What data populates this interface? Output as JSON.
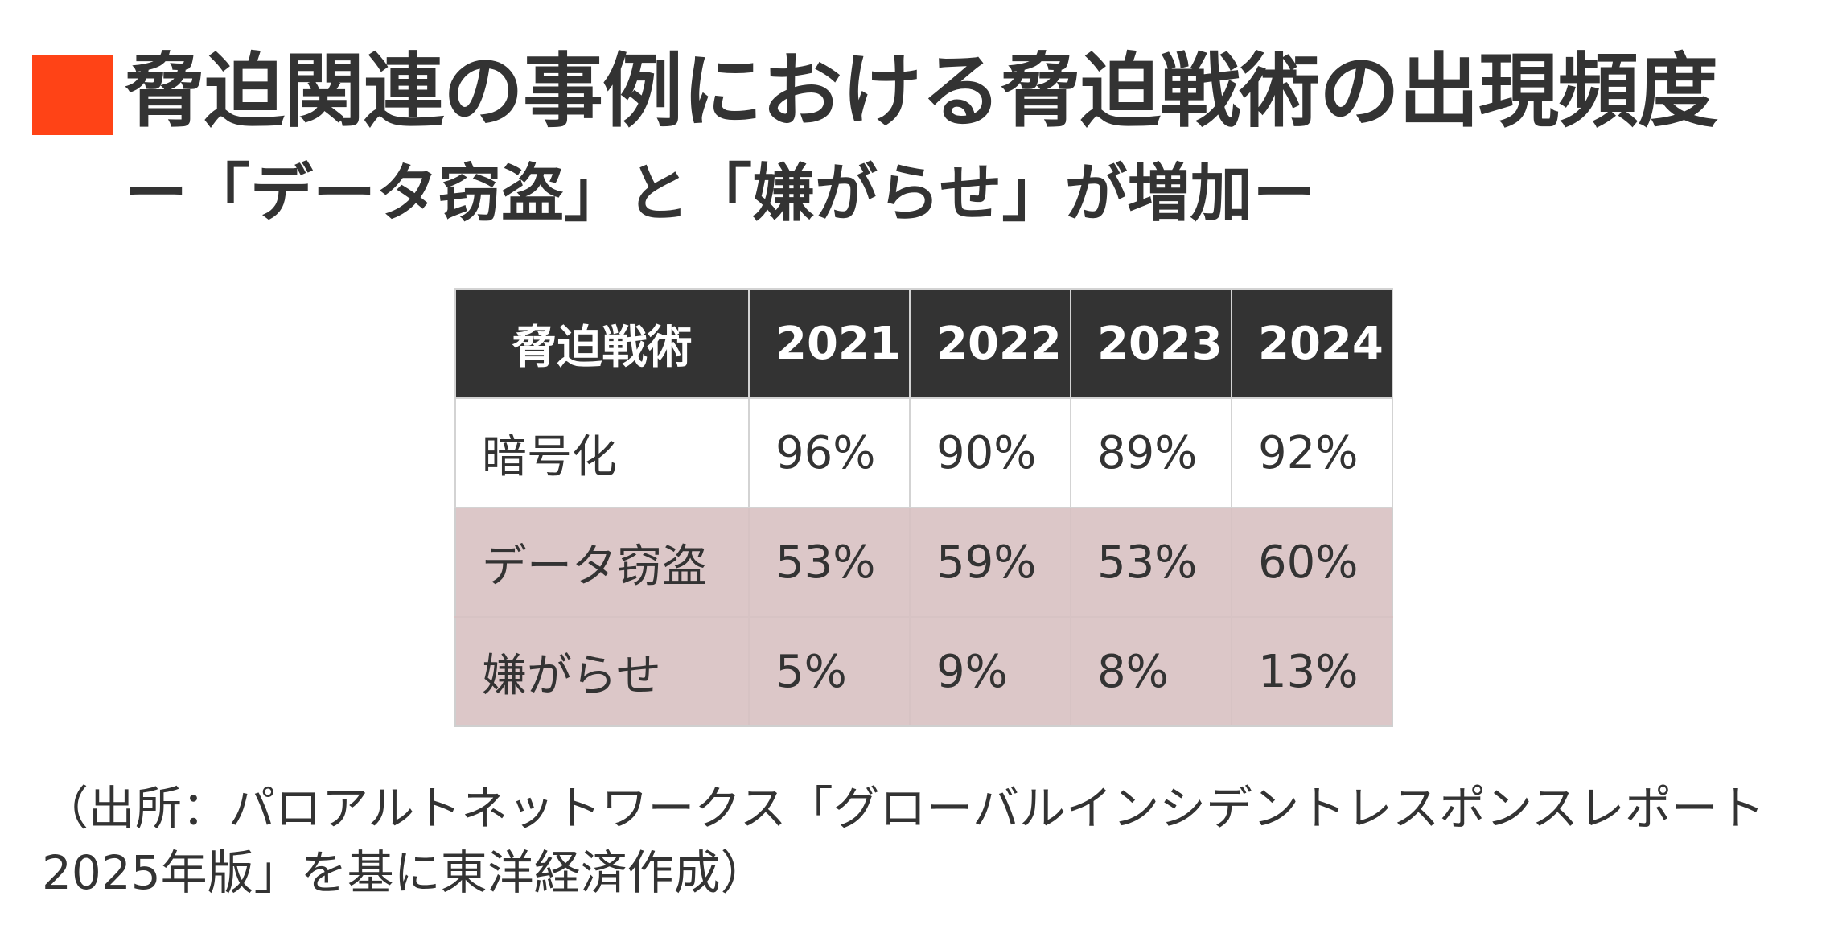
{
  "title": "脅迫関連の事例における脅迫戦術の出現頻度",
  "subtitle": "ー「データ窃盗」と「嫌がらせ」が増加ー",
  "source_note": "（出所：パロアルトネットワークス「グローバルインシデントレスポンスレポート2025年版」を基に東洋経済作成）",
  "colors": {
    "accent": "#ff4316",
    "header_bg": "#333333",
    "highlight_row_bg": "#dcc7c8"
  },
  "chart_data": {
    "type": "table",
    "columns": [
      "脅迫戦術",
      "2021",
      "2022",
      "2023",
      "2024"
    ],
    "rows": [
      {
        "label": "暗号化",
        "values": [
          "96%",
          "90%",
          "89%",
          "92%"
        ],
        "highlighted": false
      },
      {
        "label": "データ窃盗",
        "values": [
          "53%",
          "59%",
          "53%",
          "60%"
        ],
        "highlighted": true
      },
      {
        "label": "嫌がらせ",
        "values": [
          "5%",
          "9%",
          "8%",
          "13%"
        ],
        "highlighted": true
      }
    ]
  }
}
